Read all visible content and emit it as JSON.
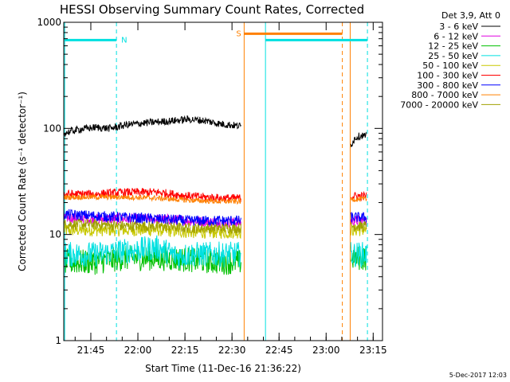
{
  "chart_data": {
    "type": "line",
    "title": "HESSI Observing Summary Count Rates, Corrected",
    "xlabel": "Start Time (11-Dec-16 21:36:22)",
    "ylabel": "Corrected Count Rate (s⁻¹ detector⁻¹)",
    "yscale": "log",
    "ylim": [
      1,
      1000
    ],
    "xlim_minutes": [
      0,
      101.6
    ],
    "x_tick_labels": [
      "21:45",
      "22:00",
      "22:15",
      "22:30",
      "22:45",
      "23:00",
      "23:15"
    ],
    "x_tick_minutes": [
      8.63,
      23.63,
      38.63,
      53.63,
      68.63,
      83.63,
      98.63
    ],
    "y_tick_labels": [
      "1",
      "10",
      "100",
      "1000"
    ],
    "legend_header": "Det 3,9, Att 0",
    "legend_placement": "right",
    "series": [
      {
        "name": "3 - 6 keV",
        "color": "#000000",
        "segments": [
          {
            "x": [
              0,
              5,
              10,
              15,
              20,
              25,
              30,
              35,
              40,
              45,
              50,
              53,
              55,
              56.5
            ],
            "y": [
              90,
              98,
              102,
              100,
              108,
              112,
              115,
              118,
              122,
              118,
              110,
              108,
              106,
              105
            ]
          },
          {
            "x": [
              91.5,
              93,
              95,
              96.5
            ],
            "y": [
              70,
              82,
              86,
              84
            ]
          }
        ]
      },
      {
        "name": "6 - 12 keV",
        "color": "#e000e0",
        "segments": [
          {
            "x": [
              0,
              10,
              20,
              30,
              40,
              50,
              56.5
            ],
            "y": [
              14.5,
              14,
              14,
              14,
              13.5,
              13,
              13
            ]
          },
          {
            "x": [
              91.5,
              96.5
            ],
            "y": [
              13.5,
              13.5
            ]
          }
        ]
      },
      {
        "name": "12 - 25 keV",
        "color": "#00c000",
        "segments": [
          {
            "x": [
              0,
              10,
              20,
              30,
              40,
              50,
              56.5
            ],
            "y": [
              5.5,
              5.5,
              6,
              6,
              5.8,
              5.5,
              5.5
            ]
          },
          {
            "x": [
              91.5,
              96.5
            ],
            "y": [
              6,
              6
            ]
          }
        ]
      },
      {
        "name": "25 - 50 keV",
        "color": "#00e0e0",
        "segments": [
          {
            "x": [
              0,
              10,
              20,
              30,
              36,
              40,
              50,
              56.5
            ],
            "y": [
              6.5,
              6.5,
              7,
              7.5,
              6.2,
              6.5,
              6.5,
              6.5
            ]
          },
          {
            "x": [
              91.5,
              96.5
            ],
            "y": [
              6.5,
              6.5
            ]
          }
        ]
      },
      {
        "name": "50 - 100 keV",
        "color": "#c8c800",
        "segments": [
          {
            "x": [
              0,
              10,
              20,
              30,
              40,
              50,
              56.5
            ],
            "y": [
              11,
              11,
              11,
              11,
              10.5,
              10.5,
              10.5
            ]
          },
          {
            "x": [
              91.5,
              96.5
            ],
            "y": [
              11,
              11
            ]
          }
        ]
      },
      {
        "name": "100 - 300 keV",
        "color": "#ff0000",
        "segments": [
          {
            "x": [
              0,
              10,
              20,
              30,
              40,
              50,
              56.5
            ],
            "y": [
              24,
              24,
              25,
              25,
              23,
              22,
              22
            ]
          },
          {
            "x": [
              91.5,
              96.5
            ],
            "y": [
              23,
              23
            ]
          }
        ]
      },
      {
        "name": "300 - 800 keV",
        "color": "#0000ff",
        "segments": [
          {
            "x": [
              0,
              10,
              20,
              30,
              40,
              50,
              56.5
            ],
            "y": [
              15.5,
              15,
              14.5,
              14,
              13.5,
              13.5,
              13.5
            ]
          },
          {
            "x": [
              91.5,
              96.5
            ],
            "y": [
              14.5,
              14.5
            ]
          }
        ]
      },
      {
        "name": "800 - 7000 keV",
        "color": "#ff8000",
        "segments": [
          {
            "x": [
              0,
              10,
              20,
              30,
              40,
              50,
              56.5
            ],
            "y": [
              22.5,
              22.5,
              22.5,
              22,
              21,
              20.5,
              20.5
            ]
          },
          {
            "x": [
              91.5,
              96.5
            ],
            "y": [
              21.5,
              21.5
            ]
          }
        ]
      },
      {
        "name": "7000 - 20000 keV",
        "color": "#a0a000",
        "segments": [
          {
            "x": [
              0,
              10,
              20,
              30,
              40,
              50,
              56.5
            ],
            "y": [
              12.5,
              12.5,
              12,
              12,
              11.5,
              11.5,
              11.5
            ]
          },
          {
            "x": [
              91.5,
              96.5
            ],
            "y": [
              12,
              12
            ]
          }
        ]
      }
    ],
    "markers": {
      "vertical_lines": [
        {
          "x": 0.3,
          "color": "#00e0e0",
          "style": "solid"
        },
        {
          "x": 16.8,
          "color": "#00e0e0",
          "style": "dashed"
        },
        {
          "x": 64.3,
          "color": "#00e0e0",
          "style": "solid"
        },
        {
          "x": 96.8,
          "color": "#00e0e0",
          "style": "dashed"
        },
        {
          "x": 57.5,
          "color": "#ff8000",
          "style": "solid"
        },
        {
          "x": 88.8,
          "color": "#ff8000",
          "style": "dashed"
        },
        {
          "x": 91.3,
          "color": "#ff8000",
          "style": "solid"
        }
      ],
      "bars": [
        {
          "x0": 0.3,
          "x1": 16.8,
          "y": 680,
          "color": "#00e0e0",
          "label": "N"
        },
        {
          "x0": 64.3,
          "x1": 96.8,
          "y": 680,
          "color": "#00e0e0",
          "label": ""
        },
        {
          "x0": 57.5,
          "x1": 88.8,
          "y": 780,
          "color": "#ff8000",
          "label": "S"
        }
      ]
    },
    "footer_text": "5-Dec-2017 12:03"
  }
}
